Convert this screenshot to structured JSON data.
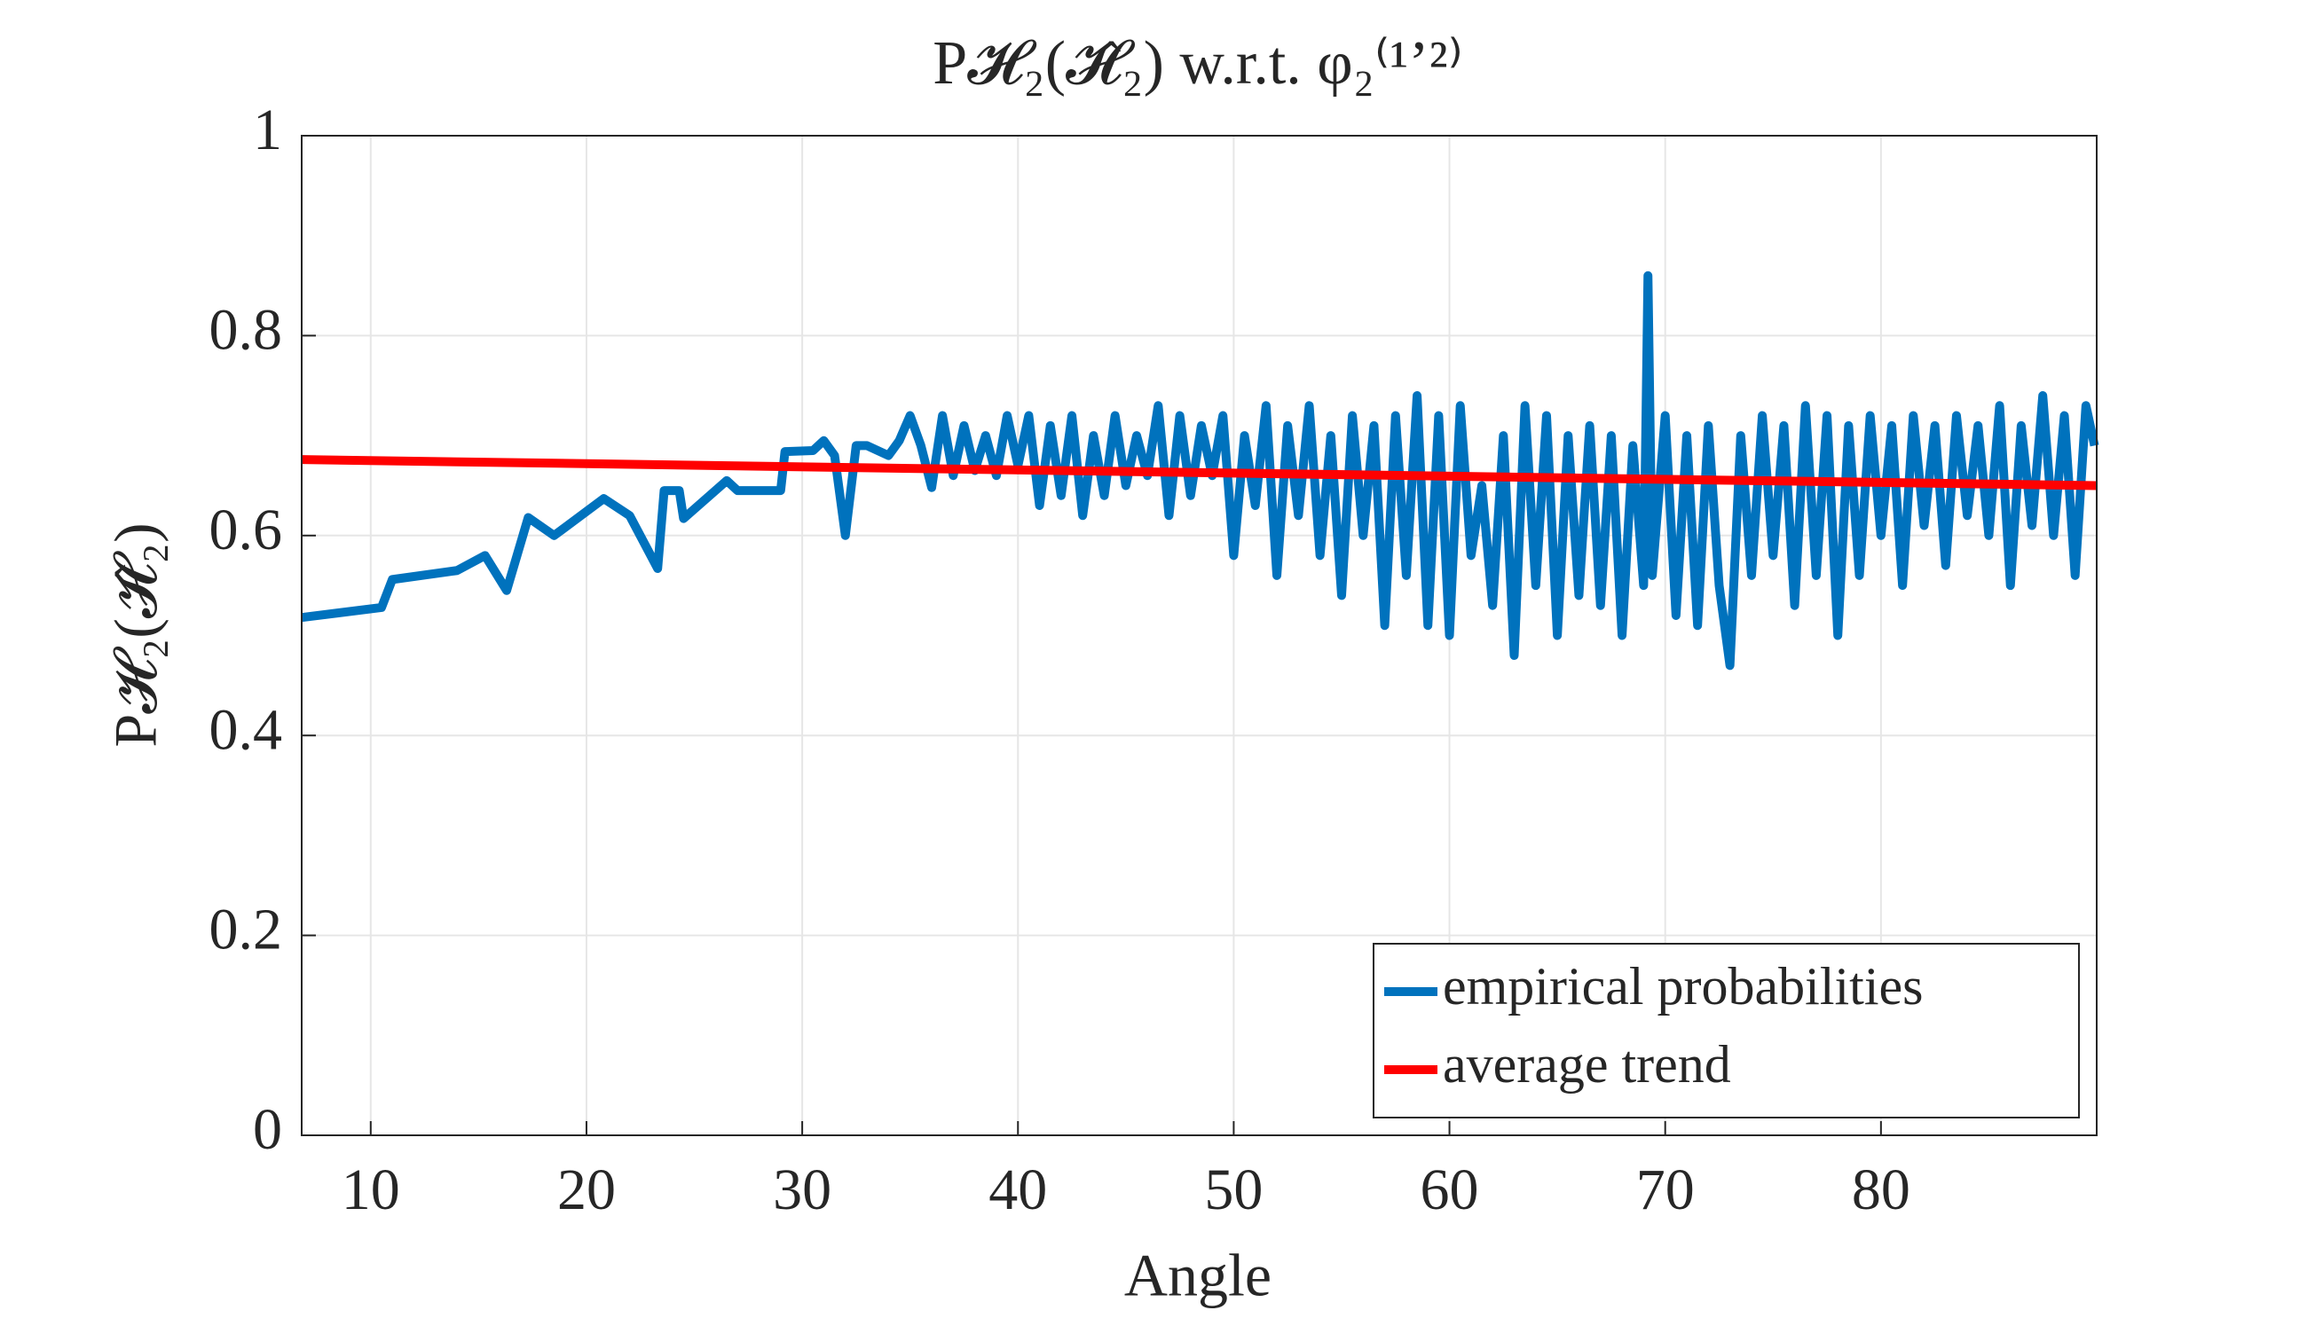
{
  "chart_data": {
    "type": "line",
    "title": "P𝓗₂(𝓗̂₂) w.r.t. φ₂⁽¹ʼ²⁾",
    "x_label": "Angle",
    "y_label": "P𝓗₂(𝓗̂₂)",
    "xlim": [
      6.8,
      90
    ],
    "ylim": [
      0,
      1
    ],
    "xticks": [
      10,
      20,
      30,
      40,
      50,
      60,
      70,
      80
    ],
    "yticks": [
      0,
      0.2,
      0.4,
      0.6,
      0.8,
      1
    ],
    "grid": true,
    "legend": "lower right",
    "series": [
      {
        "name": "empirical probabilities",
        "color": "#0072bd",
        "x": [
          6.8,
          10.5,
          11,
          14,
          15.3,
          16.3,
          17.3,
          18.5,
          20.8,
          22,
          23.3,
          23.6,
          24.3,
          24.5,
          26.5,
          27,
          29,
          29.2,
          30.5,
          31,
          31.5,
          32,
          32.5,
          33,
          34,
          34.5,
          35,
          35.5,
          36,
          36.5,
          37,
          37.5,
          38,
          38.5,
          39,
          39.5,
          40,
          40.5,
          41,
          41.5,
          42,
          42.5,
          43,
          43.5,
          44,
          44.5,
          45,
          45.5,
          46,
          46.5,
          47,
          47.5,
          48,
          48.5,
          49,
          49.5,
          50,
          50.5,
          51,
          51.5,
          52,
          52.5,
          53,
          53.5,
          54,
          54.5,
          55,
          55.5,
          56,
          56.5,
          57,
          57.5,
          58,
          58.5,
          59,
          59.5,
          60,
          60.5,
          61,
          61.5,
          62,
          62.5,
          63,
          63.5,
          64,
          64.5,
          65,
          65.5,
          66,
          66.5,
          67,
          67.5,
          68,
          68.5,
          69,
          69.2,
          69.4,
          70,
          70.5,
          71,
          71.5,
          72,
          72.5,
          73,
          73.5,
          74,
          74.5,
          75,
          75.5,
          76,
          76.5,
          77,
          77.5,
          78,
          78.5,
          79,
          79.5,
          80,
          80.5,
          81,
          81.5,
          82,
          82.5,
          83,
          83.5,
          84,
          84.5,
          85,
          85.5,
          86,
          86.5,
          87,
          87.5,
          88,
          88.5,
          89,
          89.5,
          89.9
        ],
        "values": [
          0.518,
          0.528,
          0.556,
          0.565,
          0.58,
          0.545,
          0.618,
          0.6,
          0.637,
          0.62,
          0.567,
          0.645,
          0.645,
          0.617,
          0.655,
          0.645,
          0.645,
          0.684,
          0.685,
          0.695,
          0.68,
          0.6,
          0.69,
          0.69,
          0.68,
          0.695,
          0.72,
          0.69,
          0.648,
          0.72,
          0.66,
          0.71,
          0.665,
          0.7,
          0.66,
          0.72,
          0.67,
          0.72,
          0.63,
          0.71,
          0.64,
          0.72,
          0.62,
          0.7,
          0.64,
          0.72,
          0.65,
          0.7,
          0.66,
          0.73,
          0.62,
          0.72,
          0.64,
          0.71,
          0.66,
          0.72,
          0.58,
          0.7,
          0.63,
          0.73,
          0.56,
          0.71,
          0.62,
          0.73,
          0.58,
          0.7,
          0.54,
          0.72,
          0.6,
          0.71,
          0.51,
          0.72,
          0.56,
          0.74,
          0.51,
          0.72,
          0.5,
          0.73,
          0.58,
          0.65,
          0.53,
          0.7,
          0.48,
          0.73,
          0.55,
          0.72,
          0.5,
          0.7,
          0.54,
          0.71,
          0.53,
          0.7,
          0.5,
          0.69,
          0.55,
          0.86,
          0.56,
          0.72,
          0.52,
          0.7,
          0.51,
          0.71,
          0.55,
          0.47,
          0.7,
          0.56,
          0.72,
          0.58,
          0.71,
          0.53,
          0.73,
          0.56,
          0.72,
          0.5,
          0.71,
          0.56,
          0.72,
          0.6,
          0.71,
          0.55,
          0.72,
          0.61,
          0.71,
          0.57,
          0.72,
          0.62,
          0.71,
          0.6,
          0.73,
          0.55,
          0.71,
          0.61,
          0.74,
          0.6,
          0.72,
          0.56,
          0.73,
          0.69
        ]
      },
      {
        "name": "average trend",
        "color": "#ff0000",
        "x": [
          6.8,
          90
        ],
        "values": [
          0.676,
          0.65
        ]
      }
    ]
  }
}
